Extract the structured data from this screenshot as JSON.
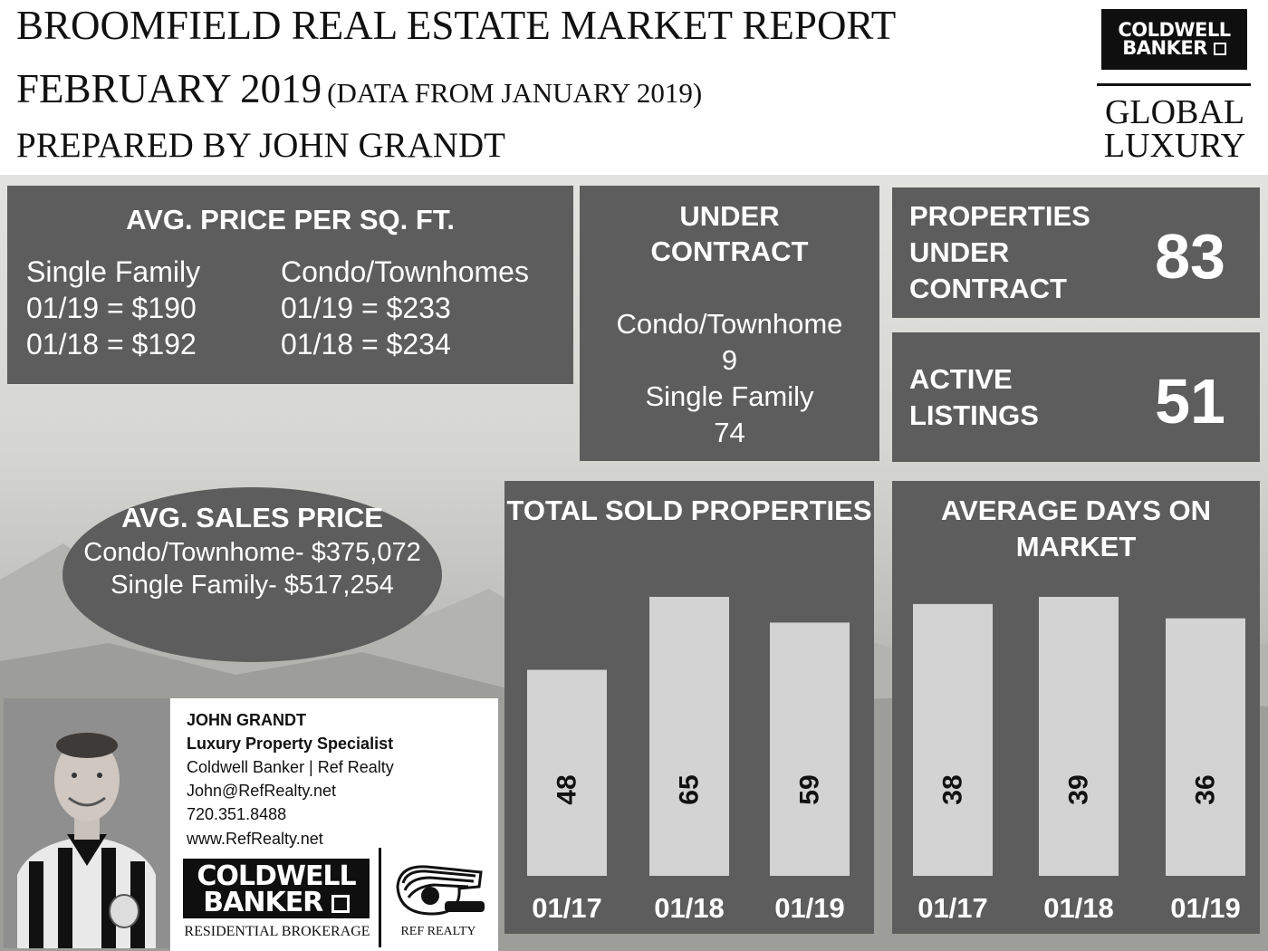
{
  "header": {
    "title": "BROOMFIELD REAL ESTATE MARKET REPORT",
    "date": "FEBRUARY 2019",
    "date_note": "(DATA FROM JANUARY 2019)",
    "prepared_by": "PREPARED BY JOHN GRANDT"
  },
  "brand": {
    "logo_line1": "COLDWELL",
    "logo_line2": "BANKER",
    "luxury_line1": "GLOBAL",
    "luxury_line2": "LUXURY"
  },
  "price_per_sqft": {
    "title": "AVG. PRICE PER SQ. FT.",
    "single_family": {
      "label": "Single Family",
      "current": "01/19 = $190",
      "previous": "01/18 = $192"
    },
    "condo": {
      "label": "Condo/Townhomes",
      "current": "01/19 = $233",
      "previous": "01/18 = $234"
    }
  },
  "under_contract": {
    "title_line1": "UNDER",
    "title_line2": "CONTRACT",
    "condo_label": "Condo/Townhome",
    "condo_value": "9",
    "single_label": "Single Family",
    "single_value": "74"
  },
  "properties_under_contract": {
    "line1": "PROPERTIES",
    "line2": "UNDER",
    "line3": "CONTRACT",
    "value": "83"
  },
  "active_listings": {
    "line1": "ACTIVE",
    "line2": "LISTINGS",
    "value": "51"
  },
  "avg_sales_price": {
    "title": "AVG. SALES PRICE",
    "condo": "Condo/Townhome- $375,072",
    "single": "Single Family- $517,254"
  },
  "agent": {
    "name": "JOHN GRANDT",
    "role": "Luxury Property Specialist",
    "company": "Coldwell Banker | Ref Realty",
    "email": "John@RefRealty.net",
    "phone": "720.351.8488",
    "website": "www.RefRealty.net",
    "brokerage_logo_line1": "COLDWELL",
    "brokerage_logo_line2": "BANKER",
    "brokerage_sub": "RESIDENTIAL BROKERAGE",
    "ref_realty": "REF REALTY"
  },
  "colors": {
    "panel": "#5d5d5d",
    "bar": "#d3d3d3",
    "text_light": "#ffffff",
    "text_dark": "#111111"
  },
  "chart_data": [
    {
      "type": "bar",
      "title": "TOTAL SOLD PROPERTIES",
      "categories": [
        "01/17",
        "01/18",
        "01/19"
      ],
      "values": [
        48,
        65,
        59
      ],
      "ylim": [
        0,
        65
      ]
    },
    {
      "type": "bar",
      "title": "AVERAGE DAYS ON MARKET",
      "categories": [
        "01/17",
        "01/18",
        "01/19"
      ],
      "values": [
        38,
        39,
        36
      ],
      "ylim": [
        0,
        39
      ]
    }
  ]
}
